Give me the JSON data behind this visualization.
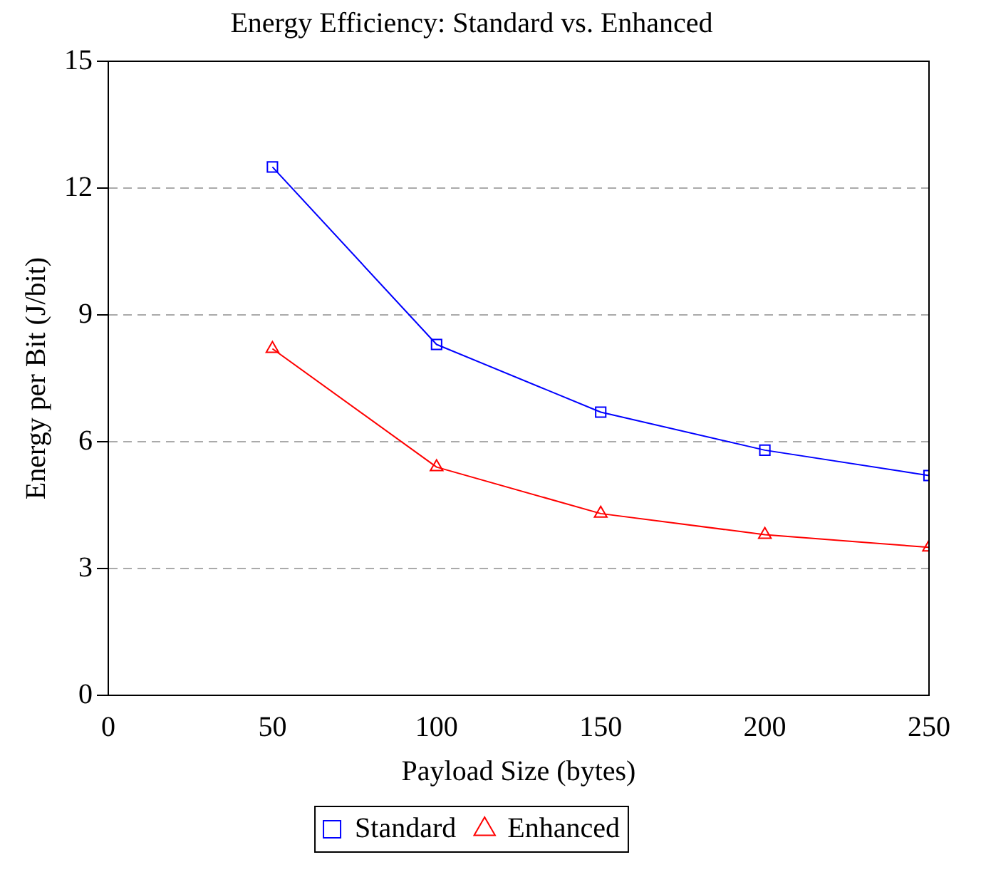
{
  "chart_data": {
    "type": "line",
    "title": "Energy Efficiency: Standard vs. Enhanced",
    "xlabel": "Payload Size (bytes)",
    "ylabel": "Energy per Bit (J/bit)",
    "x": [
      50,
      100,
      150,
      200,
      250
    ],
    "series": [
      {
        "name": "Standard",
        "color": "#0000ff",
        "marker": "square",
        "values": [
          12.5,
          8.3,
          6.7,
          5.8,
          5.2
        ]
      },
      {
        "name": "Enhanced",
        "color": "#ff0000",
        "marker": "triangle",
        "values": [
          8.2,
          5.4,
          4.3,
          3.8,
          3.5
        ]
      }
    ],
    "xlim": [
      0,
      250
    ],
    "xticks": [
      0,
      50,
      100,
      150,
      200,
      250
    ],
    "ylim": [
      0,
      15
    ],
    "yticks": [
      0,
      3,
      6,
      9,
      12,
      15
    ],
    "grid": "y",
    "legend": "bottom",
    "line_style": "solid"
  }
}
